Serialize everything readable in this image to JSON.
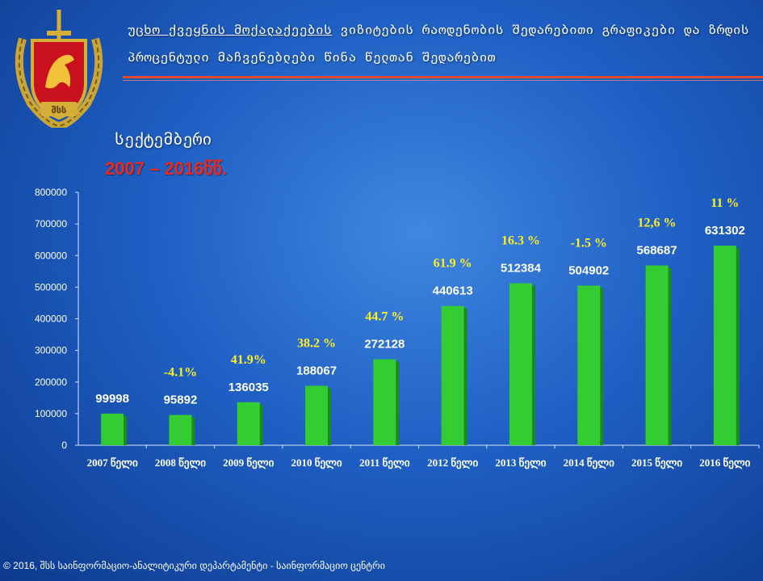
{
  "header": {
    "title_first": "უცხო ქვეყნის მოქალაქეების",
    "title_rest": " ვიზიტების რაოდენობის შედარებითი გრაფიკები და ზრდის პროცენტული მაჩვენებლები წინა წელთან შედარებით"
  },
  "emblem": {
    "text": "შსს"
  },
  "subtitle": {
    "month": "სექტემბერი",
    "years": "2007 – 2016წწ."
  },
  "footer": {
    "text": "© 2016, შსს საინფორმაციო-ანალიტიკური დეპარტამენტი - საინფორმაციო ცენტრი"
  },
  "colors": {
    "bar": "#33cc33",
    "bar_shadow": "#1a8a1a",
    "pct_label": "#ffee22",
    "value_label": "#ffffff",
    "accent_red": "#e82a1e"
  },
  "chart_data": {
    "type": "bar",
    "categories": [
      "2007 წელი",
      "2008 წელი",
      "2009 წელი",
      "2010 წელი",
      "2011 წელი",
      "2012 წელი",
      "2013 წელი",
      "2014 წელი",
      "2015 წელი",
      "2016 წელი"
    ],
    "values": [
      99998,
      95892,
      136035,
      188067,
      272128,
      440613,
      512384,
      504902,
      568687,
      631302
    ],
    "value_labels": [
      "99998",
      "95892",
      "136035",
      "188067",
      "272128",
      "440613",
      "512384",
      "504902",
      "568687",
      "631302"
    ],
    "change_labels": [
      "",
      "-4.1%",
      "41.9%",
      "38.2 %",
      "44.7 %",
      "61.9 %",
      "16.3 %",
      "-1.5 %",
      "12,6 %",
      "11 %"
    ],
    "yticks": [
      "0",
      "100000",
      "200000",
      "300000",
      "400000",
      "500000",
      "600000",
      "700000",
      "800000"
    ],
    "ylim": [
      0,
      800000
    ],
    "grid": false
  }
}
